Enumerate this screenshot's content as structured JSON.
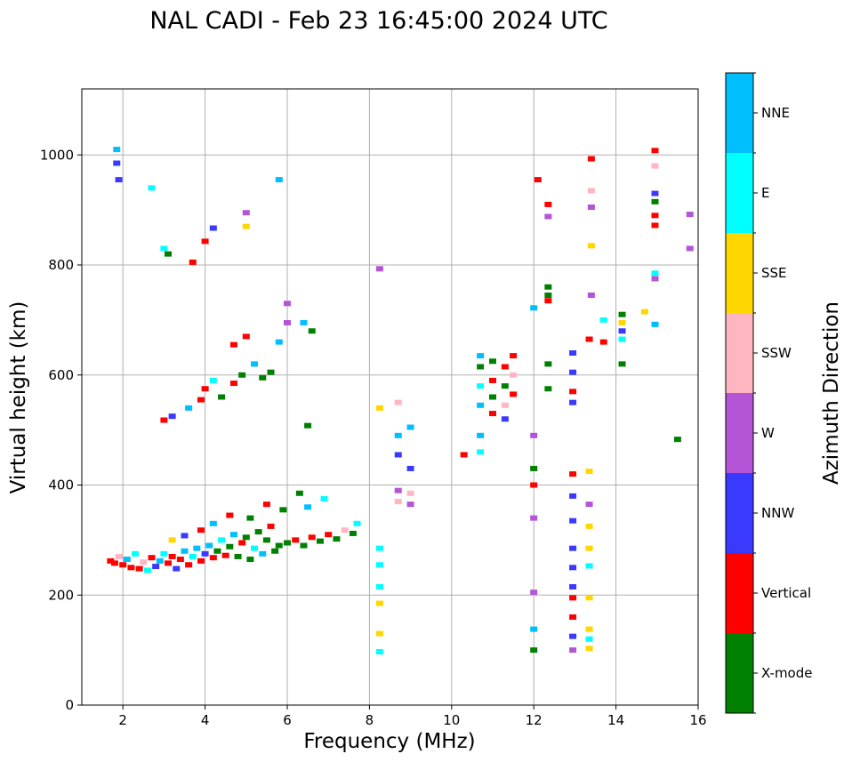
{
  "chart_data": {
    "type": "scatter",
    "title": "NAL CADI - Feb 23 16:45:00 2024 UTC",
    "xlabel": "Frequency (MHz)",
    "ylabel": "Virtual height (km)",
    "xlim": [
      1,
      16
    ],
    "ylim": [
      0,
      1120
    ],
    "xticks": [
      "2",
      "4",
      "6",
      "8",
      "10",
      "12",
      "14",
      "16"
    ],
    "yticks": [
      "0",
      "200",
      "400",
      "600",
      "800",
      "1000"
    ],
    "grid": true,
    "colorbar": {
      "label": "Azimuth Direction",
      "categories": [
        {
          "name": "X-mode",
          "color": "#008000"
        },
        {
          "name": "Vertical",
          "color": "#ff0000"
        },
        {
          "name": "NNW",
          "color": "#3a3aff"
        },
        {
          "name": "W",
          "color": "#b455d8"
        },
        {
          "name": "SSW",
          "color": "#ffb6c1"
        },
        {
          "name": "SSE",
          "color": "#ffd700"
        },
        {
          "name": "E",
          "color": "#00ffff"
        },
        {
          "name": "NNE",
          "color": "#00bfff"
        }
      ]
    },
    "points": [
      {
        "f": 1.7,
        "h": 262,
        "dir": "Vertical"
      },
      {
        "f": 1.8,
        "h": 258,
        "dir": "Vertical"
      },
      {
        "f": 1.9,
        "h": 270,
        "dir": "SSW"
      },
      {
        "f": 2.0,
        "h": 255,
        "dir": "Vertical"
      },
      {
        "f": 2.1,
        "h": 265,
        "dir": "NNE"
      },
      {
        "f": 2.2,
        "h": 250,
        "dir": "Vertical"
      },
      {
        "f": 2.3,
        "h": 275,
        "dir": "E"
      },
      {
        "f": 2.4,
        "h": 248,
        "dir": "Vertical"
      },
      {
        "f": 2.5,
        "h": 260,
        "dir": "SSW"
      },
      {
        "f": 2.6,
        "h": 245,
        "dir": "E"
      },
      {
        "f": 2.7,
        "h": 268,
        "dir": "Vertical"
      },
      {
        "f": 2.8,
        "h": 252,
        "dir": "NNW"
      },
      {
        "f": 2.9,
        "h": 262,
        "dir": "NNE"
      },
      {
        "f": 3.0,
        "h": 275,
        "dir": "E"
      },
      {
        "f": 3.1,
        "h": 258,
        "dir": "Vertical"
      },
      {
        "f": 3.2,
        "h": 270,
        "dir": "Vertical"
      },
      {
        "f": 3.3,
        "h": 248,
        "dir": "NNW"
      },
      {
        "f": 3.4,
        "h": 265,
        "dir": "Vertical"
      },
      {
        "f": 3.5,
        "h": 280,
        "dir": "NNE"
      },
      {
        "f": 3.6,
        "h": 255,
        "dir": "Vertical"
      },
      {
        "f": 3.7,
        "h": 270,
        "dir": "E"
      },
      {
        "f": 3.8,
        "h": 285,
        "dir": "NNE"
      },
      {
        "f": 3.9,
        "h": 262,
        "dir": "Vertical"
      },
      {
        "f": 4.0,
        "h": 275,
        "dir": "NNW"
      },
      {
        "f": 4.1,
        "h": 290,
        "dir": "NNE"
      },
      {
        "f": 4.2,
        "h": 268,
        "dir": "Vertical"
      },
      {
        "f": 4.3,
        "h": 280,
        "dir": "X-mode"
      },
      {
        "f": 4.4,
        "h": 300,
        "dir": "E"
      },
      {
        "f": 4.5,
        "h": 272,
        "dir": "Vertical"
      },
      {
        "f": 4.6,
        "h": 288,
        "dir": "X-mode"
      },
      {
        "f": 4.7,
        "h": 310,
        "dir": "NNE"
      },
      {
        "f": 4.8,
        "h": 270,
        "dir": "X-mode"
      },
      {
        "f": 4.9,
        "h": 295,
        "dir": "Vertical"
      },
      {
        "f": 5.0,
        "h": 305,
        "dir": "X-mode"
      },
      {
        "f": 5.1,
        "h": 265,
        "dir": "X-mode"
      },
      {
        "f": 5.2,
        "h": 285,
        "dir": "E"
      },
      {
        "f": 5.3,
        "h": 315,
        "dir": "X-mode"
      },
      {
        "f": 5.4,
        "h": 275,
        "dir": "NNE"
      },
      {
        "f": 5.5,
        "h": 300,
        "dir": "X-mode"
      },
      {
        "f": 5.6,
        "h": 325,
        "dir": "Vertical"
      },
      {
        "f": 5.7,
        "h": 280,
        "dir": "X-mode"
      },
      {
        "f": 5.8,
        "h": 290,
        "dir": "X-mode"
      },
      {
        "f": 6.0,
        "h": 295,
        "dir": "X-mode"
      },
      {
        "f": 6.2,
        "h": 300,
        "dir": "Vertical"
      },
      {
        "f": 6.4,
        "h": 290,
        "dir": "X-mode"
      },
      {
        "f": 6.6,
        "h": 305,
        "dir": "Vertical"
      },
      {
        "f": 6.8,
        "h": 298,
        "dir": "X-mode"
      },
      {
        "f": 7.0,
        "h": 310,
        "dir": "Vertical"
      },
      {
        "f": 7.2,
        "h": 302,
        "dir": "X-mode"
      },
      {
        "f": 7.4,
        "h": 318,
        "dir": "SSW"
      },
      {
        "f": 7.6,
        "h": 312,
        "dir": "X-mode"
      },
      {
        "f": 7.7,
        "h": 330,
        "dir": "E"
      },
      {
        "f": 6.5,
        "h": 360,
        "dir": "NNE"
      },
      {
        "f": 6.9,
        "h": 375,
        "dir": "E"
      },
      {
        "f": 6.3,
        "h": 385,
        "dir": "X-mode"
      },
      {
        "f": 5.9,
        "h": 355,
        "dir": "X-mode"
      },
      {
        "f": 5.5,
        "h": 365,
        "dir": "Vertical"
      },
      {
        "f": 5.1,
        "h": 340,
        "dir": "X-mode"
      },
      {
        "f": 4.6,
        "h": 345,
        "dir": "Vertical"
      },
      {
        "f": 4.2,
        "h": 330,
        "dir": "NNE"
      },
      {
        "f": 3.9,
        "h": 318,
        "dir": "Vertical"
      },
      {
        "f": 3.5,
        "h": 308,
        "dir": "NNW"
      },
      {
        "f": 3.2,
        "h": 300,
        "dir": "SSE"
      },
      {
        "f": 3.0,
        "h": 518,
        "dir": "Vertical"
      },
      {
        "f": 3.2,
        "h": 525,
        "dir": "NNW"
      },
      {
        "f": 3.6,
        "h": 540,
        "dir": "NNE"
      },
      {
        "f": 3.9,
        "h": 555,
        "dir": "Vertical"
      },
      {
        "f": 4.0,
        "h": 575,
        "dir": "Vertical"
      },
      {
        "f": 4.2,
        "h": 590,
        "dir": "E"
      },
      {
        "f": 4.4,
        "h": 560,
        "dir": "X-mode"
      },
      {
        "f": 4.7,
        "h": 585,
        "dir": "Vertical"
      },
      {
        "f": 4.9,
        "h": 600,
        "dir": "X-mode"
      },
      {
        "f": 5.2,
        "h": 620,
        "dir": "NNE"
      },
      {
        "f": 5.4,
        "h": 595,
        "dir": "X-mode"
      },
      {
        "f": 5.6,
        "h": 605,
        "dir": "X-mode"
      },
      {
        "f": 4.7,
        "h": 655,
        "dir": "Vertical"
      },
      {
        "f": 5.0,
        "h": 670,
        "dir": "Vertical"
      },
      {
        "f": 5.8,
        "h": 660,
        "dir": "NNE"
      },
      {
        "f": 6.5,
        "h": 508,
        "dir": "X-mode"
      },
      {
        "f": 6.6,
        "h": 680,
        "dir": "X-mode"
      },
      {
        "f": 1.85,
        "h": 1010,
        "dir": "NNE"
      },
      {
        "f": 1.85,
        "h": 985,
        "dir": "NNW"
      },
      {
        "f": 1.9,
        "h": 955,
        "dir": "NNW"
      },
      {
        "f": 2.7,
        "h": 940,
        "dir": "E"
      },
      {
        "f": 3.0,
        "h": 830,
        "dir": "E"
      },
      {
        "f": 3.1,
        "h": 820,
        "dir": "X-mode"
      },
      {
        "f": 3.7,
        "h": 805,
        "dir": "Vertical"
      },
      {
        "f": 4.0,
        "h": 843,
        "dir": "Vertical"
      },
      {
        "f": 4.2,
        "h": 867,
        "dir": "NNW"
      },
      {
        "f": 5.0,
        "h": 895,
        "dir": "W"
      },
      {
        "f": 5.0,
        "h": 870,
        "dir": "SSE"
      },
      {
        "f": 5.8,
        "h": 955,
        "dir": "NNE"
      },
      {
        "f": 6.0,
        "h": 730,
        "dir": "W"
      },
      {
        "f": 6.0,
        "h": 695,
        "dir": "W"
      },
      {
        "f": 6.4,
        "h": 695,
        "dir": "NNE"
      },
      {
        "f": 8.25,
        "h": 793,
        "dir": "W"
      },
      {
        "f": 8.25,
        "h": 540,
        "dir": "SSE"
      },
      {
        "f": 8.7,
        "h": 550,
        "dir": "SSW"
      },
      {
        "f": 8.7,
        "h": 490,
        "dir": "NNE"
      },
      {
        "f": 8.7,
        "h": 455,
        "dir": "NNW"
      },
      {
        "f": 8.7,
        "h": 390,
        "dir": "W"
      },
      {
        "f": 8.7,
        "h": 370,
        "dir": "SSW"
      },
      {
        "f": 9.0,
        "h": 505,
        "dir": "NNE"
      },
      {
        "f": 9.0,
        "h": 430,
        "dir": "NNW"
      },
      {
        "f": 9.0,
        "h": 385,
        "dir": "SSW"
      },
      {
        "f": 9.0,
        "h": 365,
        "dir": "W"
      },
      {
        "f": 8.25,
        "h": 285,
        "dir": "E"
      },
      {
        "f": 8.25,
        "h": 255,
        "dir": "E"
      },
      {
        "f": 8.25,
        "h": 215,
        "dir": "E"
      },
      {
        "f": 8.25,
        "h": 185,
        "dir": "SSE"
      },
      {
        "f": 8.25,
        "h": 130,
        "dir": "SSE"
      },
      {
        "f": 8.25,
        "h": 97,
        "dir": "E"
      },
      {
        "f": 10.3,
        "h": 455,
        "dir": "Vertical"
      },
      {
        "f": 10.7,
        "h": 635,
        "dir": "NNE"
      },
      {
        "f": 10.7,
        "h": 615,
        "dir": "X-mode"
      },
      {
        "f": 10.7,
        "h": 580,
        "dir": "E"
      },
      {
        "f": 10.7,
        "h": 545,
        "dir": "NNE"
      },
      {
        "f": 10.7,
        "h": 490,
        "dir": "NNE"
      },
      {
        "f": 10.7,
        "h": 460,
        "dir": "E"
      },
      {
        "f": 11.0,
        "h": 625,
        "dir": "X-mode"
      },
      {
        "f": 11.0,
        "h": 590,
        "dir": "Vertical"
      },
      {
        "f": 11.0,
        "h": 560,
        "dir": "X-mode"
      },
      {
        "f": 11.0,
        "h": 530,
        "dir": "Vertical"
      },
      {
        "f": 11.3,
        "h": 615,
        "dir": "Vertical"
      },
      {
        "f": 11.3,
        "h": 580,
        "dir": "X-mode"
      },
      {
        "f": 11.3,
        "h": 545,
        "dir": "SSW"
      },
      {
        "f": 11.3,
        "h": 520,
        "dir": "NNW"
      },
      {
        "f": 11.5,
        "h": 635,
        "dir": "Vertical"
      },
      {
        "f": 11.5,
        "h": 600,
        "dir": "SSW"
      },
      {
        "f": 11.5,
        "h": 565,
        "dir": "Vertical"
      },
      {
        "f": 12.0,
        "h": 722,
        "dir": "NNE"
      },
      {
        "f": 12.0,
        "h": 490,
        "dir": "W"
      },
      {
        "f": 12.0,
        "h": 430,
        "dir": "X-mode"
      },
      {
        "f": 12.0,
        "h": 400,
        "dir": "Vertical"
      },
      {
        "f": 12.0,
        "h": 340,
        "dir": "W"
      },
      {
        "f": 12.0,
        "h": 205,
        "dir": "W"
      },
      {
        "f": 12.0,
        "h": 138,
        "dir": "NNE"
      },
      {
        "f": 12.0,
        "h": 100,
        "dir": "X-mode"
      },
      {
        "f": 12.1,
        "h": 955,
        "dir": "Vertical"
      },
      {
        "f": 12.35,
        "h": 910,
        "dir": "Vertical"
      },
      {
        "f": 12.35,
        "h": 888,
        "dir": "W"
      },
      {
        "f": 12.35,
        "h": 760,
        "dir": "X-mode"
      },
      {
        "f": 12.35,
        "h": 745,
        "dir": "X-mode"
      },
      {
        "f": 12.35,
        "h": 735,
        "dir": "Vertical"
      },
      {
        "f": 12.35,
        "h": 620,
        "dir": "X-mode"
      },
      {
        "f": 12.35,
        "h": 575,
        "dir": "X-mode"
      },
      {
        "f": 12.95,
        "h": 640,
        "dir": "NNW"
      },
      {
        "f": 12.95,
        "h": 605,
        "dir": "NNW"
      },
      {
        "f": 12.95,
        "h": 570,
        "dir": "Vertical"
      },
      {
        "f": 12.95,
        "h": 550,
        "dir": "NNW"
      },
      {
        "f": 12.95,
        "h": 420,
        "dir": "Vertical"
      },
      {
        "f": 12.95,
        "h": 380,
        "dir": "NNW"
      },
      {
        "f": 12.95,
        "h": 335,
        "dir": "NNW"
      },
      {
        "f": 12.95,
        "h": 285,
        "dir": "NNW"
      },
      {
        "f": 12.95,
        "h": 250,
        "dir": "NNW"
      },
      {
        "f": 12.95,
        "h": 215,
        "dir": "NNW"
      },
      {
        "f": 12.95,
        "h": 195,
        "dir": "Vertical"
      },
      {
        "f": 12.95,
        "h": 160,
        "dir": "Vertical"
      },
      {
        "f": 12.95,
        "h": 125,
        "dir": "NNW"
      },
      {
        "f": 12.95,
        "h": 100,
        "dir": "W"
      },
      {
        "f": 13.35,
        "h": 665,
        "dir": "Vertical"
      },
      {
        "f": 13.35,
        "h": 425,
        "dir": "SSE"
      },
      {
        "f": 13.35,
        "h": 365,
        "dir": "W"
      },
      {
        "f": 13.35,
        "h": 325,
        "dir": "SSE"
      },
      {
        "f": 13.35,
        "h": 285,
        "dir": "SSE"
      },
      {
        "f": 13.35,
        "h": 253,
        "dir": "E"
      },
      {
        "f": 13.35,
        "h": 195,
        "dir": "SSE"
      },
      {
        "f": 13.35,
        "h": 138,
        "dir": "SSE"
      },
      {
        "f": 13.35,
        "h": 120,
        "dir": "E"
      },
      {
        "f": 13.35,
        "h": 103,
        "dir": "SSE"
      },
      {
        "f": 13.4,
        "h": 993,
        "dir": "Vertical"
      },
      {
        "f": 13.4,
        "h": 935,
        "dir": "SSW"
      },
      {
        "f": 13.4,
        "h": 905,
        "dir": "W"
      },
      {
        "f": 13.4,
        "h": 835,
        "dir": "SSE"
      },
      {
        "f": 13.4,
        "h": 745,
        "dir": "W"
      },
      {
        "f": 13.7,
        "h": 700,
        "dir": "E"
      },
      {
        "f": 13.7,
        "h": 660,
        "dir": "Vertical"
      },
      {
        "f": 14.15,
        "h": 710,
        "dir": "X-mode"
      },
      {
        "f": 14.15,
        "h": 695,
        "dir": "SSE"
      },
      {
        "f": 14.15,
        "h": 680,
        "dir": "NNW"
      },
      {
        "f": 14.15,
        "h": 665,
        "dir": "E"
      },
      {
        "f": 14.15,
        "h": 620,
        "dir": "X-mode"
      },
      {
        "f": 14.7,
        "h": 715,
        "dir": "SSE"
      },
      {
        "f": 14.95,
        "h": 1008,
        "dir": "Vertical"
      },
      {
        "f": 14.95,
        "h": 980,
        "dir": "SSW"
      },
      {
        "f": 14.95,
        "h": 930,
        "dir": "NNW"
      },
      {
        "f": 14.95,
        "h": 915,
        "dir": "X-mode"
      },
      {
        "f": 14.95,
        "h": 890,
        "dir": "Vertical"
      },
      {
        "f": 14.95,
        "h": 872,
        "dir": "Vertical"
      },
      {
        "f": 14.95,
        "h": 785,
        "dir": "E"
      },
      {
        "f": 14.95,
        "h": 775,
        "dir": "W"
      },
      {
        "f": 14.95,
        "h": 692,
        "dir": "NNE"
      },
      {
        "f": 15.5,
        "h": 483,
        "dir": "X-mode"
      },
      {
        "f": 15.8,
        "h": 892,
        "dir": "W"
      },
      {
        "f": 15.8,
        "h": 830,
        "dir": "W"
      }
    ]
  }
}
